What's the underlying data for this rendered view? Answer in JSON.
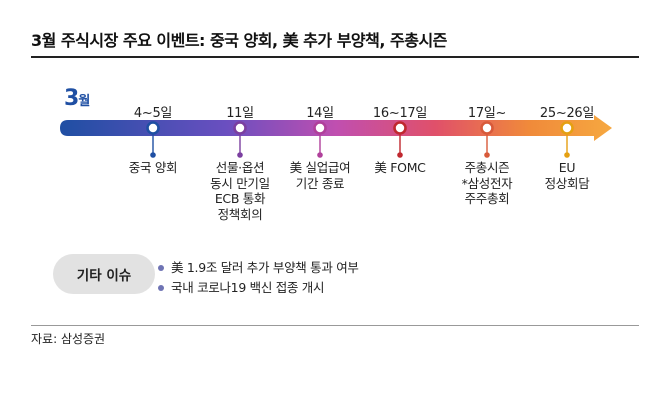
{
  "title": "3월 주식시장 주요 이벤트: 중국 양회, 美 추가 부양책, 주총시즌",
  "month": {
    "number": "3",
    "suffix": "월"
  },
  "events": [
    {
      "date": "4~5일",
      "lines": [
        "중국 양회"
      ],
      "color": "#1f4fa3"
    },
    {
      "date": "11일",
      "lines": [
        "선물·옵션",
        "동시 만기일",
        "ECB 통화",
        "정책회의"
      ],
      "color": "#7b3fa0"
    },
    {
      "date": "14일",
      "lines": [
        "美 실업급여",
        "기간 종료"
      ],
      "color": "#b0409b"
    },
    {
      "date": "16~17일",
      "lines": [
        "美 FOMC"
      ],
      "color": "#c0282f"
    },
    {
      "date": "17일~",
      "lines": [
        "주총시즌",
        "*삼성전자",
        "주주총회"
      ],
      "color": "#d85a3a"
    },
    {
      "date": "25~26일",
      "lines": [
        "EU",
        "정상회담"
      ],
      "color": "#e5a012"
    }
  ],
  "other": {
    "label": "기타 이슈",
    "items": [
      "美 1.9조 달러 추가 부양책 통과 여부",
      "국내 코로나19 백신 접종 개시"
    ]
  },
  "source": "자료: 삼성증권"
}
